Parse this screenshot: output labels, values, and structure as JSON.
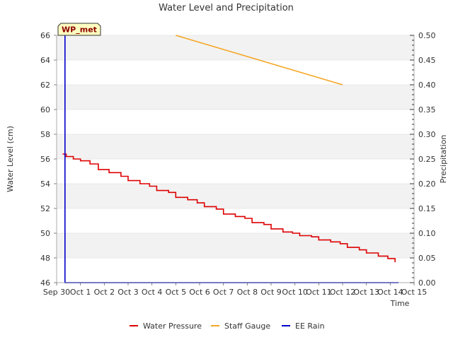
{
  "chart_data": {
    "type": "line",
    "title": "Water Level and Precipitation",
    "xlabel": "Time",
    "ylabel": "Water Level (cm)",
    "y2label": "Precipitation",
    "site_badge": "WP_met",
    "x_range": [
      0,
      15
    ],
    "ylim": [
      46,
      66
    ],
    "y2lim": [
      0,
      0.5
    ],
    "x_ticks": [
      {
        "value": 0,
        "label": "Sep 30"
      },
      {
        "value": 1,
        "label": "Oct 1"
      },
      {
        "value": 2,
        "label": "Oct 2"
      },
      {
        "value": 3,
        "label": "Oct 3"
      },
      {
        "value": 4,
        "label": "Oct 4"
      },
      {
        "value": 5,
        "label": "Oct 5"
      },
      {
        "value": 6,
        "label": "Oct 6"
      },
      {
        "value": 7,
        "label": "Oct 7"
      },
      {
        "value": 8,
        "label": "Oct 8"
      },
      {
        "value": 9,
        "label": "Oct 9"
      },
      {
        "value": 10,
        "label": "Oct 10"
      },
      {
        "value": 11,
        "label": "Oct 11"
      },
      {
        "value": 12,
        "label": "Oct 12"
      },
      {
        "value": 13,
        "label": "Oct 13"
      },
      {
        "value": 14,
        "label": "Oct 14"
      },
      {
        "value": 15,
        "label": "Oct 15"
      }
    ],
    "y_ticks": [
      {
        "value": 46,
        "label": "46"
      },
      {
        "value": 48,
        "label": "48"
      },
      {
        "value": 50,
        "label": "50"
      },
      {
        "value": 52,
        "label": "52"
      },
      {
        "value": 54,
        "label": "54"
      },
      {
        "value": 56,
        "label": "56"
      },
      {
        "value": 58,
        "label": "58"
      },
      {
        "value": 60,
        "label": "60"
      },
      {
        "value": 62,
        "label": "62"
      },
      {
        "value": 64,
        "label": "64"
      },
      {
        "value": 66,
        "label": "66"
      }
    ],
    "y2_ticks": [
      {
        "value": 0.0,
        "label": "0.00"
      },
      {
        "value": 0.05,
        "label": "0.05"
      },
      {
        "value": 0.1,
        "label": "0.10"
      },
      {
        "value": 0.15,
        "label": "0.15"
      },
      {
        "value": 0.2,
        "label": "0.20"
      },
      {
        "value": 0.25,
        "label": "0.25"
      },
      {
        "value": 0.3,
        "label": "0.30"
      },
      {
        "value": 0.35,
        "label": "0.35"
      },
      {
        "value": 0.4,
        "label": "0.40"
      },
      {
        "value": 0.45,
        "label": "0.45"
      },
      {
        "value": 0.5,
        "label": "0.50"
      }
    ],
    "grid": "horizontal bands",
    "legend_position": "bottom-center",
    "series": [
      {
        "name": "Water Pressure",
        "color": "#dd0000",
        "axis": "left",
        "x": [
          0.25,
          0.4,
          0.7,
          1.0,
          1.4,
          1.75,
          2.2,
          2.7,
          3.0,
          3.5,
          3.9,
          4.2,
          4.7,
          5.0,
          5.5,
          5.9,
          6.2,
          6.7,
          7.0,
          7.5,
          7.9,
          8.2,
          8.7,
          9.0,
          9.5,
          9.9,
          10.2,
          10.7,
          11.0,
          11.5,
          11.9,
          12.2,
          12.7,
          13.0,
          13.5,
          13.9,
          14.2
        ],
        "y": [
          56.4,
          56.2,
          56.0,
          55.85,
          55.6,
          55.15,
          54.9,
          54.6,
          54.25,
          54.0,
          53.8,
          53.45,
          53.3,
          52.9,
          52.7,
          52.45,
          52.15,
          51.95,
          51.55,
          51.35,
          51.2,
          50.85,
          50.7,
          50.35,
          50.1,
          50.0,
          49.8,
          49.7,
          49.45,
          49.3,
          49.15,
          48.85,
          48.65,
          48.4,
          48.15,
          47.95,
          47.65
        ]
      },
      {
        "name": "Staff Gauge",
        "color": "#f5a623",
        "axis": "left",
        "x": [
          5.0,
          12.0
        ],
        "y": [
          66.0,
          62.0
        ]
      },
      {
        "name": "EE Rain",
        "color": "#0000cc",
        "axis": "right",
        "x": [
          0.35,
          0.35,
          0.35,
          14.35
        ],
        "y": [
          0.5,
          0.0,
          0.0,
          0.0
        ]
      }
    ]
  }
}
